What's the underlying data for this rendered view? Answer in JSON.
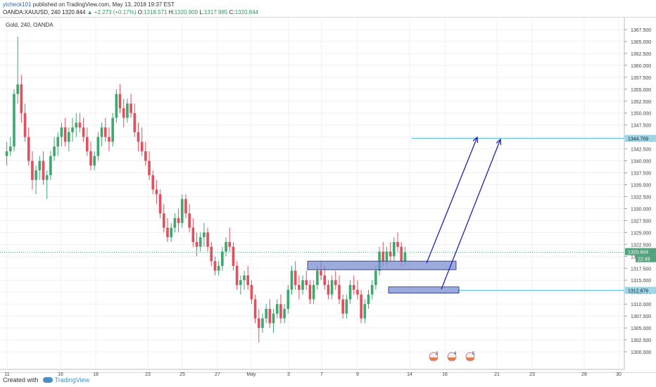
{
  "header": {
    "author": "ytcheck101",
    "published_text": " published on TradingView.com, May 13, 2018 19:37 EST"
  },
  "symbol_bar": {
    "symbol": "OANDA:XAUUSD, 240",
    "last": "1320.844",
    "change": "▲ +2.273 (+0.17%)",
    "o_label": "O:",
    "o": "1318.571",
    "h_label": "H:",
    "h": "1320.909",
    "l_label": "L:",
    "l": "1317.985",
    "c_label": "C:",
    "c": "1320.844"
  },
  "legend": "Gold, 240, OANDA",
  "footer": {
    "created_with": "Created with",
    "brand": "TradingView"
  },
  "colors": {
    "up": "#3ea86f",
    "down": "#e0505e",
    "grid": "#eef0f3",
    "zone_fill": "#7c8fd0",
    "zone_stroke": "#1a2a8c",
    "arrow": "#1f22b8",
    "hline": "#6cc4dc",
    "price_label_bg": "#4fa37d",
    "hline_label_bg": "#9fd5e6"
  },
  "chart_data": {
    "type": "candlestick",
    "ylim": [
      1297.5,
      1370.0
    ],
    "y_ticks": [
      "1300.000",
      "1302.500",
      "1305.000",
      "1307.500",
      "1310.000",
      "1312.500",
      "1315.000",
      "1317.500",
      "1320.000",
      "1322.500",
      "1325.000",
      "1327.500",
      "1330.000",
      "1332.500",
      "1335.000",
      "1337.500",
      "1340.000",
      "1342.500",
      "1345.000",
      "1347.500",
      "1350.000",
      "1352.500",
      "1355.000",
      "1357.500",
      "1360.000",
      "1362.500",
      "1365.000",
      "1367.500"
    ],
    "x_ticks": [
      "11",
      "16",
      "18",
      "23",
      "25",
      "27",
      "May",
      "3",
      "7",
      "9",
      "14",
      "16",
      "21",
      "23",
      "28",
      "30"
    ],
    "last_price_label": "1320.844",
    "countdown_label": "22:49",
    "hlines": [
      {
        "price": 1344.709,
        "label": "1344.709"
      },
      {
        "price": 1312.876,
        "label": "1312.876"
      }
    ],
    "zones": [
      {
        "price_top": 1319.0,
        "price_bottom": 1317.2
      },
      {
        "price_top": 1313.6,
        "price_bottom": 1312.3
      }
    ],
    "arrows": [
      {
        "from_bar": 122,
        "from_price": 1319.0,
        "to_bar": 134,
        "to_price": 1344.0
      },
      {
        "from_bar": 126,
        "from_price": 1313.2,
        "to_bar": 140,
        "to_price": 1343.8
      }
    ],
    "events": [
      "3",
      "4",
      "5"
    ],
    "candles": [
      [
        1341,
        1344,
        1339,
        1342
      ],
      [
        1342,
        1345,
        1341,
        1343
      ],
      [
        1343,
        1355,
        1342,
        1354
      ],
      [
        1354,
        1366,
        1352,
        1356
      ],
      [
        1356,
        1358,
        1348,
        1350
      ],
      [
        1350,
        1352,
        1344,
        1345
      ],
      [
        1345,
        1347,
        1339,
        1340
      ],
      [
        1340,
        1342,
        1334,
        1336
      ],
      [
        1336,
        1339,
        1333,
        1338
      ],
      [
        1338,
        1341,
        1336,
        1340
      ],
      [
        1340,
        1342,
        1335,
        1336
      ],
      [
        1336,
        1338,
        1332,
        1337
      ],
      [
        1337,
        1342,
        1336,
        1341
      ],
      [
        1341,
        1345,
        1340,
        1343
      ],
      [
        1343,
        1346,
        1341,
        1345
      ],
      [
        1345,
        1348,
        1343,
        1347
      ],
      [
        1347,
        1349,
        1343,
        1344
      ],
      [
        1344,
        1347,
        1342,
        1346
      ],
      [
        1346,
        1349,
        1344,
        1347
      ],
      [
        1347,
        1350,
        1345,
        1348
      ],
      [
        1348,
        1350,
        1346,
        1347
      ],
      [
        1347,
        1349,
        1344,
        1345
      ],
      [
        1345,
        1347,
        1341,
        1342
      ],
      [
        1342,
        1344,
        1338,
        1339
      ],
      [
        1339,
        1342,
        1338,
        1341
      ],
      [
        1341,
        1346,
        1340,
        1345
      ],
      [
        1345,
        1348,
        1343,
        1347
      ],
      [
        1347,
        1349,
        1344,
        1345
      ],
      [
        1345,
        1347,
        1342,
        1344
      ],
      [
        1344,
        1350,
        1343,
        1349
      ],
      [
        1349,
        1355,
        1348,
        1354
      ],
      [
        1354,
        1356,
        1350,
        1351
      ],
      [
        1351,
        1353,
        1347,
        1349
      ],
      [
        1349,
        1353,
        1348,
        1352
      ],
      [
        1352,
        1354,
        1349,
        1350
      ],
      [
        1350,
        1352,
        1345,
        1346
      ],
      [
        1346,
        1348,
        1342,
        1344
      ],
      [
        1344,
        1347,
        1341,
        1342
      ],
      [
        1342,
        1344,
        1339,
        1340
      ],
      [
        1340,
        1342,
        1336,
        1337
      ],
      [
        1337,
        1338,
        1333,
        1334
      ],
      [
        1334,
        1336,
        1331,
        1333
      ],
      [
        1333,
        1334,
        1328,
        1329
      ],
      [
        1329,
        1331,
        1325,
        1326
      ],
      [
        1326,
        1328,
        1323,
        1324
      ],
      [
        1324,
        1327,
        1323,
        1326
      ],
      [
        1326,
        1329,
        1325,
        1328
      ],
      [
        1328,
        1330,
        1325,
        1327
      ],
      [
        1327,
        1333,
        1326,
        1332
      ],
      [
        1332,
        1333,
        1328,
        1329
      ],
      [
        1329,
        1331,
        1325,
        1326
      ],
      [
        1326,
        1328,
        1322,
        1323
      ],
      [
        1323,
        1325,
        1320,
        1322
      ],
      [
        1322,
        1325,
        1321,
        1324
      ],
      [
        1324,
        1327,
        1322,
        1325
      ],
      [
        1325,
        1326,
        1321,
        1322
      ],
      [
        1322,
        1323,
        1318,
        1319
      ],
      [
        1319,
        1320,
        1316,
        1317
      ],
      [
        1317,
        1319,
        1316,
        1318
      ],
      [
        1318,
        1322,
        1317,
        1321
      ],
      [
        1321,
        1324,
        1320,
        1323
      ],
      [
        1323,
        1326,
        1321,
        1322
      ],
      [
        1322,
        1323,
        1317,
        1318
      ],
      [
        1318,
        1319,
        1313,
        1314
      ],
      [
        1314,
        1316,
        1312,
        1315
      ],
      [
        1315,
        1317,
        1313,
        1316
      ],
      [
        1316,
        1318,
        1313,
        1314
      ],
      [
        1314,
        1315,
        1310,
        1311
      ],
      [
        1311,
        1312,
        1306,
        1307
      ],
      [
        1307,
        1309,
        1302,
        1305
      ],
      [
        1305,
        1308,
        1304,
        1307
      ],
      [
        1307,
        1310,
        1306,
        1309
      ],
      [
        1309,
        1311,
        1305,
        1306
      ],
      [
        1306,
        1309,
        1304,
        1308
      ],
      [
        1308,
        1311,
        1307,
        1310
      ],
      [
        1310,
        1312,
        1306,
        1307
      ],
      [
        1307,
        1310,
        1306,
        1309
      ],
      [
        1309,
        1314,
        1308,
        1313
      ],
      [
        1313,
        1318,
        1312,
        1317
      ],
      [
        1317,
        1319,
        1313,
        1314
      ],
      [
        1314,
        1316,
        1311,
        1313
      ],
      [
        1313,
        1316,
        1312,
        1315
      ],
      [
        1315,
        1317,
        1313,
        1314
      ],
      [
        1314,
        1315,
        1310,
        1311
      ],
      [
        1311,
        1315,
        1310,
        1314
      ],
      [
        1314,
        1318,
        1313,
        1317
      ],
      [
        1317,
        1319,
        1315,
        1316
      ],
      [
        1316,
        1318,
        1313,
        1314
      ],
      [
        1314,
        1315,
        1311,
        1312
      ],
      [
        1312,
        1316,
        1311,
        1315
      ],
      [
        1315,
        1317,
        1313,
        1314
      ],
      [
        1314,
        1316,
        1310,
        1311
      ],
      [
        1311,
        1312,
        1307,
        1308
      ],
      [
        1308,
        1312,
        1307,
        1311
      ],
      [
        1311,
        1315,
        1310,
        1314
      ],
      [
        1314,
        1316,
        1312,
        1313
      ],
      [
        1313,
        1315,
        1311,
        1312
      ],
      [
        1312,
        1313,
        1306,
        1307
      ],
      [
        1307,
        1311,
        1306,
        1310
      ],
      [
        1310,
        1313,
        1309,
        1312
      ],
      [
        1312,
        1315,
        1311,
        1314
      ],
      [
        1314,
        1318,
        1313,
        1317
      ],
      [
        1317,
        1322,
        1316,
        1321
      ],
      [
        1321,
        1323,
        1318,
        1319
      ],
      [
        1319,
        1322,
        1318,
        1321
      ],
      [
        1321,
        1323,
        1319,
        1320
      ],
      [
        1320,
        1324,
        1319,
        1323
      ],
      [
        1323,
        1325,
        1321,
        1322
      ],
      [
        1322,
        1323,
        1318,
        1319
      ],
      [
        1319,
        1322,
        1318,
        1320.8
      ]
    ]
  }
}
